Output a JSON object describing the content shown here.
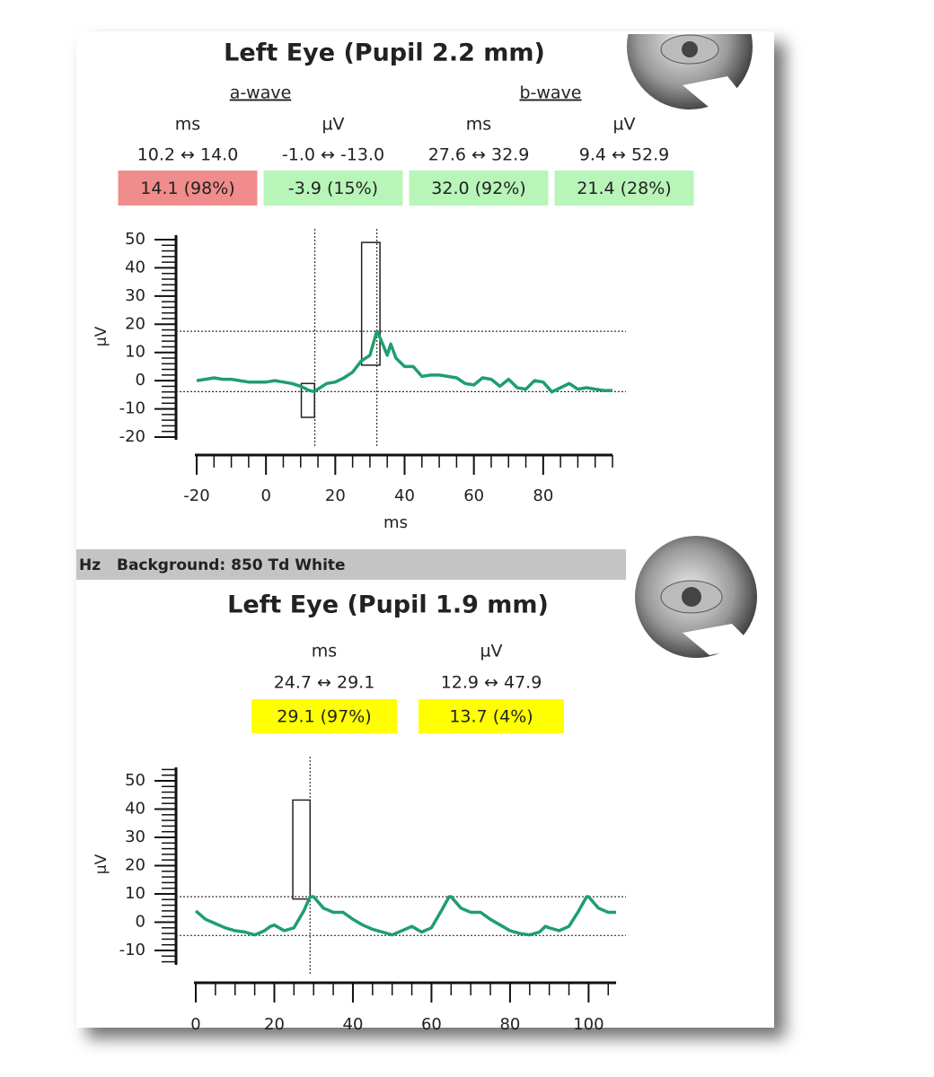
{
  "panels": [
    {
      "title": "Left Eye (Pupil 2.2 mm)",
      "groups": [
        "a-wave",
        "b-wave"
      ],
      "columns": [
        {
          "unit": "ms",
          "range": "10.2 ↔ 14.0",
          "result": "14.1 (98%)",
          "color": "#f08c8c"
        },
        {
          "unit": "µV",
          "range": "-1.0 ↔ -13.0",
          "result": "-3.9 (15%)",
          "color": "#b8f5b8"
        },
        {
          "unit": "ms",
          "range": "27.6 ↔ 32.9",
          "result": "32.0 (92%)",
          "color": "#b8f5b8"
        },
        {
          "unit": "µV",
          "range": "9.4 ↔ 52.9",
          "result": "21.4 (28%)",
          "color": "#b8f5b8"
        }
      ]
    },
    {
      "title": "Left Eye (Pupil 1.9 mm)",
      "columns": [
        {
          "unit": "ms",
          "range": "24.7 ↔ 29.1",
          "result": "29.1 (97%)",
          "color": "#ffff00"
        },
        {
          "unit": "µV",
          "range": "12.9 ↔ 47.9",
          "result": "13.7 (4%)",
          "color": "#ffff00"
        }
      ]
    }
  ],
  "banner": {
    "left": "Hz",
    "text": "Background: 850 Td White"
  },
  "chart_data": [
    {
      "type": "line",
      "ylabel": "µV",
      "xlabel": "ms",
      "x": [
        -20,
        -17.5,
        -15,
        -12.5,
        -10,
        -7.5,
        -5,
        -2.5,
        0,
        2.5,
        5,
        7.5,
        10,
        12.5,
        14,
        15,
        17.5,
        20,
        22.5,
        25,
        27.5,
        30,
        32,
        33,
        35,
        36,
        37.5,
        40,
        42.5,
        45,
        47.5,
        50,
        52.5,
        55,
        57.5,
        60,
        62.5,
        65,
        67.5,
        70,
        72.5,
        75,
        77.5,
        80,
        82.5,
        85,
        87.5,
        90,
        92.5,
        95,
        97.5,
        100
      ],
      "series": [
        {
          "color": "#1f9e6e",
          "values": [
            0,
            0.5,
            1,
            0.5,
            0.5,
            0,
            -0.5,
            -0.5,
            -0.5,
            0,
            -0.5,
            -1,
            -2,
            -3.5,
            -3.9,
            -3,
            -1,
            -0.5,
            1,
            3,
            7,
            9,
            17.5,
            15,
            9,
            13,
            8,
            5,
            5,
            1.5,
            2,
            2,
            1.5,
            1,
            -1,
            -1.5,
            1,
            0.5,
            -2,
            0.5,
            -2.5,
            -3,
            0,
            -0.5,
            -4,
            -2.5,
            -1,
            -3,
            -2.5,
            -3,
            -3.5,
            -3.5
          ]
        }
      ],
      "boxes": [
        {
          "x": [
            10.2,
            14.0
          ],
          "y": [
            -1.0,
            -13.0
          ]
        },
        {
          "x": [
            27.6,
            32.9
          ],
          "y": [
            5.5,
            49.0
          ]
        }
      ],
      "cursors": {
        "x": [
          14.1,
          32.0
        ],
        "y": [
          -3.9,
          17.5
        ]
      },
      "xlim": [
        -20,
        100
      ],
      "ylim": [
        -20,
        50
      ],
      "xticks": [
        -20,
        0,
        20,
        40,
        60,
        80
      ],
      "yticks": [
        -20,
        -10,
        0,
        10,
        20,
        30,
        40,
        50
      ]
    },
    {
      "type": "line",
      "ylabel": "µV",
      "x": [
        0,
        2.5,
        5,
        7.5,
        10,
        12.5,
        15,
        17.5,
        19,
        20,
        22.5,
        25,
        27.5,
        29.1,
        30,
        32.5,
        35,
        37.5,
        40,
        42.5,
        45,
        47.5,
        50,
        52.5,
        55,
        57.5,
        60,
        62.5,
        64.5,
        65,
        67.5,
        70,
        72.5,
        75,
        77.5,
        80,
        82.5,
        85,
        87.5,
        89,
        90,
        92.5,
        95,
        97.5,
        99.5,
        100,
        102.5,
        105,
        107
      ],
      "series": [
        {
          "color": "#1f9e6e",
          "values": [
            4,
            1,
            -0.5,
            -2,
            -3,
            -3.5,
            -4.5,
            -3,
            -1.5,
            -1,
            -3,
            -2,
            4,
            9,
            9,
            5,
            3.5,
            3.5,
            1,
            -1,
            -2.5,
            -3.5,
            -4.5,
            -3,
            -1.5,
            -3.5,
            -2,
            4,
            9,
            9,
            5,
            3.5,
            3.5,
            1,
            -1,
            -3,
            -4,
            -4.5,
            -3.5,
            -1.5,
            -2,
            -3,
            -1.5,
            4,
            9,
            9,
            5,
            3.5,
            3.5
          ]
        }
      ],
      "boxes": [
        {
          "x": [
            24.7,
            29.1
          ],
          "y": [
            8.2,
            43.2
          ]
        }
      ],
      "cursors": {
        "x": [
          29.1
        ],
        "y": [
          9.0,
          -4.7
        ]
      },
      "xlim": [
        0,
        107
      ],
      "ylim": [
        -10,
        50
      ],
      "xticks": [
        0,
        20,
        40,
        60,
        80,
        100
      ],
      "yticks": [
        -10,
        0,
        10,
        20,
        30,
        40,
        50
      ]
    }
  ]
}
